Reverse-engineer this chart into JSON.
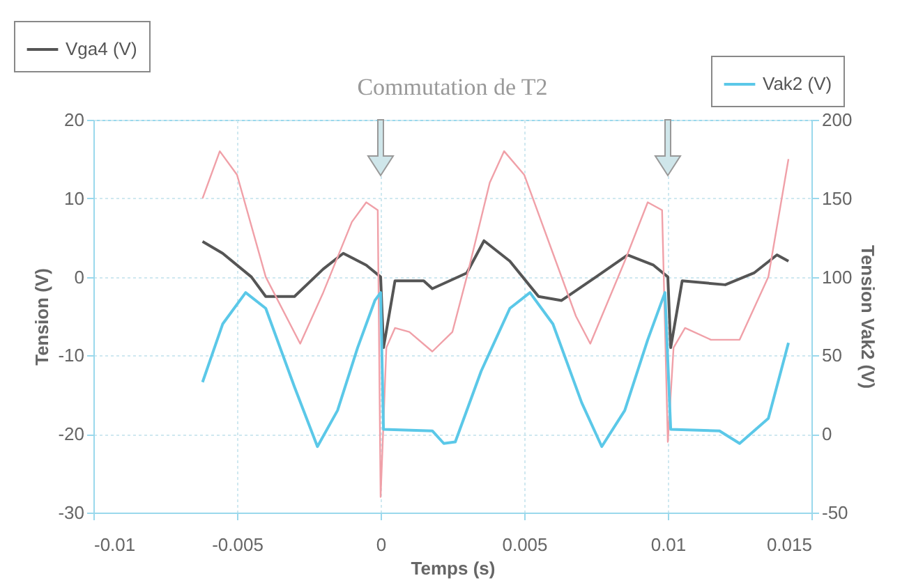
{
  "chart_data": {
    "type": "line",
    "title": "Commutation de T2",
    "xlabel": "Temps (s)",
    "ylabel": "Tension (V)",
    "y2label": "Tension Vak2 (V)",
    "xlim": [
      -0.01,
      0.015
    ],
    "xticks": [
      -0.01,
      -0.005,
      0,
      0.005,
      0.01,
      0.015
    ],
    "ylim": [
      -30,
      20
    ],
    "yticks": [
      -30,
      -20,
      -10,
      0,
      10,
      20
    ],
    "y2lim": [
      -50,
      200
    ],
    "y2ticks": [
      -50,
      0,
      50,
      100,
      150,
      200
    ],
    "grid": true,
    "legend": "top",
    "series": [
      {
        "name": "Vga4 (V)",
        "color": "#555555",
        "x": [
          -0.0062,
          -0.0055,
          -0.0045,
          -0.004,
          -0.003,
          -0.002,
          -0.0013,
          -0.0005,
          0,
          0.0001,
          0.0005,
          0.0015,
          0.0018,
          0.003,
          0.0036,
          0.0045,
          0.0055,
          0.0063,
          0.0075,
          0.0086,
          0.0095,
          0.01,
          0.0101,
          0.0105,
          0.012,
          0.013,
          0.0138,
          0.0142
        ],
        "values": [
          4.5,
          3,
          0,
          -2.5,
          -2.5,
          1,
          3,
          1.5,
          0,
          -9,
          -0.5,
          -0.5,
          -1.5,
          0.5,
          4.6,
          2,
          -2.5,
          -3,
          0,
          2.8,
          1.5,
          0,
          -9,
          -0.5,
          -1,
          0.5,
          2.8,
          2
        ]
      },
      {
        "color": "#f0a0a8",
        "x": [
          -0.0062,
          -0.0056,
          -0.005,
          -0.004,
          -0.0028,
          -0.002,
          -0.001,
          -0.0005,
          -0.0001,
          0,
          0.0002,
          0.0005,
          0.001,
          0.0018,
          0.0025,
          0.003,
          0.0038,
          0.0043,
          0.005,
          0.006,
          0.0068,
          0.0073,
          0.0085,
          0.0093,
          0.0098,
          0.01,
          0.0102,
          0.0106,
          0.0115,
          0.0125,
          0.0135,
          0.0142
        ],
        "values": [
          10,
          16,
          13,
          0,
          -8.5,
          -2,
          7,
          9.5,
          8.5,
          -28,
          -9,
          -6.5,
          -7,
          -9.5,
          -7,
          0,
          12,
          16,
          13,
          3,
          -5,
          -8.5,
          2,
          9.5,
          8.5,
          -21,
          -9,
          -6.5,
          -8,
          -8,
          0,
          15
        ]
      },
      {
        "name": "Vak2 (V)",
        "color": "#5bc8e8",
        "axis": "y2",
        "x": [
          -0.0062,
          -0.0055,
          -0.0047,
          -0.004,
          -0.003,
          -0.0022,
          -0.0015,
          -0.0008,
          -0.0002,
          0,
          0.0001,
          0.0018,
          0.0022,
          0.0026,
          0.0035,
          0.0045,
          0.0052,
          0.006,
          0.007,
          0.0077,
          0.0085,
          0.0093,
          0.0099,
          0.0101,
          0.0118,
          0.0125,
          0.0135,
          0.0142
        ],
        "values": [
          33,
          70,
          90,
          80,
          30,
          -8,
          15,
          55,
          85,
          90,
          3,
          2,
          -6,
          -5,
          40,
          80,
          90,
          70,
          20,
          -8,
          15,
          60,
          90,
          3,
          2,
          -6,
          10,
          58
        ]
      }
    ]
  }
}
